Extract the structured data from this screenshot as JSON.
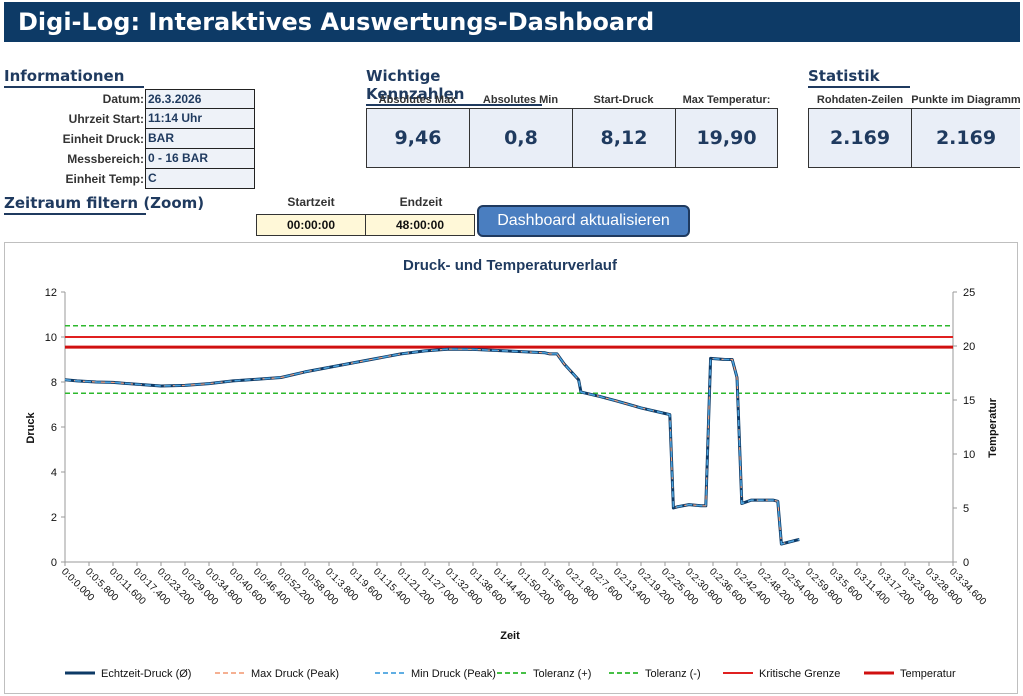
{
  "header": {
    "title": "Digi-Log: Interaktives Auswertungs-Dashboard"
  },
  "info": {
    "heading": "Informationen",
    "rows": [
      {
        "label": "Datum:",
        "value": "26.3.2026"
      },
      {
        "label": "Uhrzeit Start:",
        "value": "11:14 Uhr"
      },
      {
        "label": "Einheit Druck:",
        "value": "BAR"
      },
      {
        "label": "Messbereich:",
        "value": "0 - 16 BAR"
      },
      {
        "label": "Einheit Temp:",
        "value": "C"
      }
    ]
  },
  "kpis": {
    "heading": "Wichtige Kennzahlen",
    "items": [
      {
        "label": "Absolutes Max",
        "value": "9,46"
      },
      {
        "label": "Absolutes Min",
        "value": "0,8"
      },
      {
        "label": "Start-Druck",
        "value": "8,12"
      },
      {
        "label": "Max Temperatur:",
        "value": "19,90"
      }
    ]
  },
  "stats": {
    "heading": "Statistik",
    "items": [
      {
        "label": "Rohdaten-Zeilen",
        "value": "2.169"
      },
      {
        "label": "Punkte im Diagramm",
        "value": "2.169"
      }
    ]
  },
  "filter": {
    "heading": "Zeitraum filtern (Zoom)",
    "start_label": "Startzeit",
    "start_value": "00:00:00",
    "end_label": "Endzeit",
    "end_value": "48:00:00",
    "button_label": "Dashboard aktualisieren"
  },
  "chart_data": {
    "type": "line",
    "title": "Druck- und Temperaturverlauf",
    "xlabel": "Zeit",
    "ylabel": "Druck",
    "y2label": "Temperatur",
    "ylim": [
      0,
      12
    ],
    "y2lim": [
      0,
      25
    ],
    "yticks": [
      "0",
      "2",
      "4",
      "6",
      "8",
      "10",
      "12"
    ],
    "y2ticks": [
      "0",
      "5",
      "10",
      "15",
      "20",
      "25"
    ],
    "x_categories": [
      "0:0:0.000",
      "0:0:5.800",
      "0:0:11.600",
      "0:0:17.400",
      "0:0:23.200",
      "0:0:29.000",
      "0:0:34.800",
      "0:0:40.600",
      "0:0:46.400",
      "0:0:52.200",
      "0:0:58.000",
      "0:1:3.800",
      "0:1:9.600",
      "0:1:15.400",
      "0:1:21.200",
      "0:1:27.000",
      "0:1:32.800",
      "0:1:38.600",
      "0:1:44.400",
      "0:1:50.200",
      "0:1:56.000",
      "0:2:1.800",
      "0:2:7.600",
      "0:2:13.400",
      "0:2:19.200",
      "0:2:25.000",
      "0:2:30.800",
      "0:2:36.600",
      "0:2:42.400",
      "0:2:48.200",
      "0:2:54.000",
      "0:2:59.800",
      "0:3:5.600",
      "0:3:11.400",
      "0:3:17.200",
      "0:3:23.000",
      "0:3:28.800",
      "0:3:34.600"
    ],
    "legend_position": "bottom",
    "grid": false,
    "colors": {
      "echtzeit": "#0d3a66",
      "max": "#f4a582",
      "min": "#4aa3df",
      "toleranz": "#2db82d",
      "kritisch": "#e02020",
      "temperatur": "#d01010"
    },
    "legend": [
      {
        "name": "Echtzeit-Druck (Ø)",
        "style": "solid-thick",
        "color": "#0d3a66"
      },
      {
        "name": "Max Druck (Peak)",
        "style": "dashed",
        "color": "#f4a582"
      },
      {
        "name": "Min Druck (Peak)",
        "style": "dashed",
        "color": "#4aa3df"
      },
      {
        "name": "Toleranz (+)",
        "style": "dashed",
        "color": "#2db82d"
      },
      {
        "name": "Toleranz (-)",
        "style": "dashed",
        "color": "#2db82d"
      },
      {
        "name": "Kritische Grenze",
        "style": "solid",
        "color": "#e02020"
      },
      {
        "name": "Temperatur",
        "style": "solid-thick",
        "color": "#d01010"
      }
    ],
    "toleranz_plus": 10.5,
    "toleranz_minus": 7.5,
    "kritische_grenze": 10.0,
    "temperatur": 19.9,
    "druck_points": [
      [
        0,
        8.1
      ],
      [
        0.5,
        8.05
      ],
      [
        1.3,
        8.0
      ],
      [
        2.0,
        7.98
      ],
      [
        3.0,
        7.9
      ],
      [
        4.0,
        7.82
      ],
      [
        5.0,
        7.85
      ],
      [
        6.0,
        7.93
      ],
      [
        7.0,
        8.05
      ],
      [
        8.0,
        8.12
      ],
      [
        9.0,
        8.2
      ],
      [
        10.0,
        8.45
      ],
      [
        11.0,
        8.65
      ],
      [
        12.0,
        8.85
      ],
      [
        13.0,
        9.05
      ],
      [
        14.0,
        9.25
      ],
      [
        15.0,
        9.38
      ],
      [
        16.0,
        9.46
      ],
      [
        17.0,
        9.45
      ],
      [
        18.0,
        9.4
      ],
      [
        19.0,
        9.35
      ],
      [
        20.0,
        9.3
      ],
      [
        20.2,
        9.25
      ],
      [
        20.5,
        9.25
      ],
      [
        20.8,
        8.8
      ],
      [
        21.4,
        8.1
      ],
      [
        21.5,
        7.55
      ],
      [
        22.3,
        7.35
      ],
      [
        23.0,
        7.15
      ],
      [
        24.0,
        6.85
      ],
      [
        25.0,
        6.6
      ],
      [
        25.2,
        6.55
      ],
      [
        25.35,
        2.4
      ],
      [
        25.5,
        2.45
      ],
      [
        26.0,
        2.55
      ],
      [
        26.5,
        2.5
      ],
      [
        26.7,
        2.5
      ],
      [
        26.9,
        9.05
      ],
      [
        27.5,
        9.0
      ],
      [
        27.8,
        9.0
      ],
      [
        28.0,
        8.2
      ],
      [
        28.2,
        2.6
      ],
      [
        28.6,
        2.75
      ],
      [
        29.5,
        2.75
      ],
      [
        29.7,
        2.7
      ],
      [
        29.85,
        0.8
      ],
      [
        30.5,
        0.98
      ],
      [
        30.6,
        1.0
      ]
    ]
  }
}
